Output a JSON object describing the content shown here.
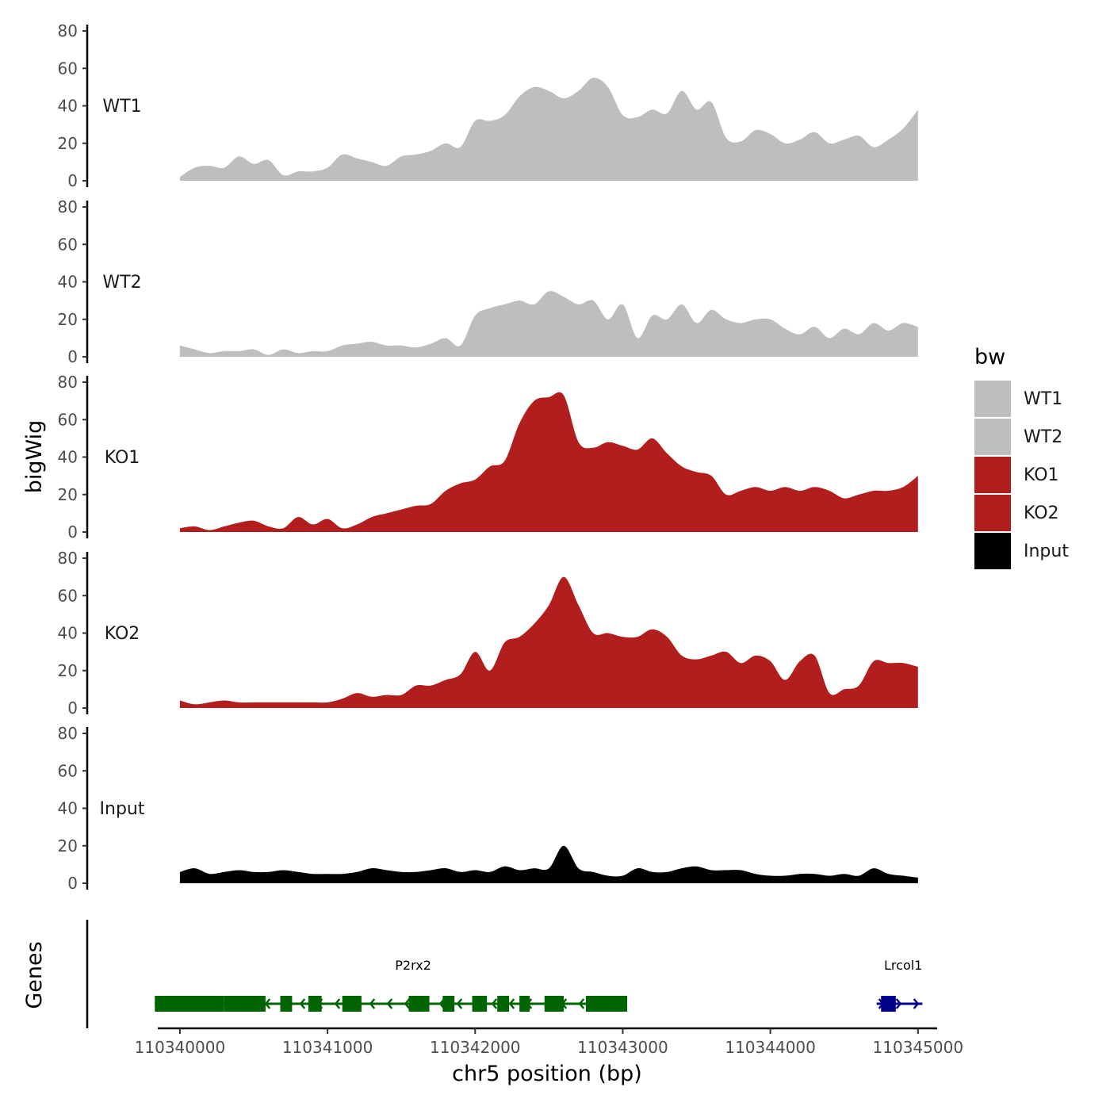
{
  "chart_data": {
    "type": "area",
    "ylabel": "bigWig",
    "xlabel": "chr5 position (bp)",
    "genes_panel_label": "Genes",
    "y_ticks": [
      0,
      20,
      40,
      60,
      80
    ],
    "ylim": [
      0,
      80
    ],
    "xlim": [
      110339850,
      110345130
    ],
    "x_ticks": [
      110340000,
      110341000,
      110342000,
      110343000,
      110344000,
      110345000
    ],
    "x_tick_labels": [
      "110340000",
      "110341000",
      "110342000",
      "110343000",
      "110344000",
      "110345000"
    ],
    "legend": {
      "title": "bw",
      "placement": "right",
      "entries": [
        {
          "name": "WT1",
          "color": "#bebebe"
        },
        {
          "name": "WT2",
          "color": "#bebebe"
        },
        {
          "name": "KO1",
          "color": "#b21e1e"
        },
        {
          "name": "KO2",
          "color": "#b21e1e"
        },
        {
          "name": "Input",
          "color": "#000000"
        }
      ]
    },
    "series": [
      {
        "name": "WT1",
        "color": "#bebebe",
        "x": [
          110340000,
          110340100,
          110340200,
          110340300,
          110340400,
          110340500,
          110340600,
          110340700,
          110340800,
          110340900,
          110341000,
          110341100,
          110341200,
          110341300,
          110341400,
          110341500,
          110341600,
          110341700,
          110341800,
          110341900,
          110342000,
          110342100,
          110342200,
          110342300,
          110342400,
          110342500,
          110342600,
          110342700,
          110342800,
          110342900,
          110343000,
          110343100,
          110343200,
          110343300,
          110343400,
          110343500,
          110343600,
          110343700,
          110343800,
          110343900,
          110344000,
          110344100,
          110344200,
          110344300,
          110344400,
          110344500,
          110344600,
          110344700,
          110344800,
          110344900,
          110345000
        ],
        "values": [
          2,
          7,
          8,
          7,
          13,
          9,
          11,
          3,
          5,
          5,
          7,
          14,
          12,
          10,
          8,
          13,
          14,
          16,
          20,
          18,
          32,
          32,
          35,
          45,
          50,
          48,
          44,
          48,
          55,
          50,
          35,
          34,
          38,
          36,
          48,
          38,
          42,
          23,
          21,
          27,
          25,
          20,
          22,
          26,
          20,
          22,
          24,
          18,
          22,
          28,
          38
        ]
      },
      {
        "name": "WT2",
        "color": "#bebebe",
        "x": [
          110340000,
          110340100,
          110340200,
          110340300,
          110340400,
          110340500,
          110340600,
          110340700,
          110340800,
          110340900,
          110341000,
          110341100,
          110341200,
          110341300,
          110341400,
          110341500,
          110341600,
          110341700,
          110341800,
          110341900,
          110342000,
          110342100,
          110342200,
          110342300,
          110342400,
          110342500,
          110342600,
          110342700,
          110342800,
          110342900,
          110343000,
          110343100,
          110343200,
          110343300,
          110343400,
          110343500,
          110343600,
          110343700,
          110343800,
          110343900,
          110344000,
          110344100,
          110344200,
          110344300,
          110344400,
          110344500,
          110344600,
          110344700,
          110344800,
          110344900,
          110345000
        ],
        "values": [
          6,
          4,
          2,
          3,
          3,
          4,
          1,
          4,
          2,
          3,
          3,
          6,
          7,
          8,
          6,
          6,
          5,
          7,
          10,
          6,
          22,
          26,
          28,
          30,
          28,
          35,
          32,
          28,
          30,
          20,
          28,
          10,
          22,
          20,
          28,
          18,
          25,
          20,
          18,
          20,
          20,
          15,
          12,
          16,
          10,
          15,
          12,
          18,
          14,
          18,
          16
        ]
      },
      {
        "name": "KO1",
        "color": "#b21e1e",
        "x": [
          110340000,
          110340100,
          110340200,
          110340300,
          110340400,
          110340500,
          110340600,
          110340700,
          110340800,
          110340900,
          110341000,
          110341100,
          110341200,
          110341300,
          110341400,
          110341500,
          110341600,
          110341700,
          110341800,
          110341900,
          110342000,
          110342100,
          110342200,
          110342300,
          110342400,
          110342500,
          110342600,
          110342700,
          110342800,
          110342900,
          110343000,
          110343100,
          110343200,
          110343300,
          110343400,
          110343500,
          110343600,
          110343700,
          110343800,
          110343900,
          110344000,
          110344100,
          110344200,
          110344300,
          110344400,
          110344500,
          110344600,
          110344700,
          110344800,
          110344900,
          110345000
        ],
        "values": [
          2,
          3,
          1,
          3,
          5,
          6,
          3,
          2,
          8,
          4,
          7,
          2,
          4,
          8,
          10,
          12,
          14,
          15,
          22,
          26,
          28,
          35,
          38,
          58,
          70,
          72,
          73,
          48,
          45,
          48,
          46,
          44,
          50,
          42,
          35,
          32,
          30,
          20,
          22,
          24,
          22,
          24,
          22,
          24,
          22,
          18,
          20,
          22,
          22,
          24,
          30
        ]
      },
      {
        "name": "KO2",
        "color": "#b21e1e",
        "x": [
          110340000,
          110340100,
          110340200,
          110340300,
          110340400,
          110340500,
          110340600,
          110340700,
          110340800,
          110340900,
          110341000,
          110341100,
          110341200,
          110341300,
          110341400,
          110341500,
          110341600,
          110341700,
          110341800,
          110341900,
          110342000,
          110342100,
          110342200,
          110342300,
          110342400,
          110342500,
          110342600,
          110342700,
          110342800,
          110342900,
          110343000,
          110343100,
          110343200,
          110343300,
          110343400,
          110343500,
          110343600,
          110343700,
          110343800,
          110343900,
          110344000,
          110344100,
          110344200,
          110344300,
          110344400,
          110344500,
          110344600,
          110344700,
          110344800,
          110344900,
          110345000
        ],
        "values": [
          4,
          2,
          3,
          4,
          3,
          3,
          3,
          3,
          3,
          3,
          3,
          5,
          8,
          6,
          7,
          7,
          12,
          12,
          15,
          18,
          30,
          20,
          35,
          38,
          45,
          55,
          70,
          55,
          40,
          40,
          38,
          38,
          42,
          38,
          28,
          26,
          28,
          30,
          24,
          28,
          25,
          15,
          25,
          28,
          8,
          10,
          12,
          25,
          24,
          24,
          22
        ]
      },
      {
        "name": "Input",
        "color": "#000000",
        "x": [
          110340000,
          110340100,
          110340200,
          110340300,
          110340400,
          110340500,
          110340600,
          110340700,
          110340800,
          110340900,
          110341000,
          110341100,
          110341200,
          110341300,
          110341400,
          110341500,
          110341600,
          110341700,
          110341800,
          110341900,
          110342000,
          110342100,
          110342200,
          110342300,
          110342400,
          110342500,
          110342600,
          110342700,
          110342800,
          110342900,
          110343000,
          110343100,
          110343200,
          110343300,
          110343400,
          110343500,
          110343600,
          110343700,
          110343800,
          110343900,
          110344000,
          110344100,
          110344200,
          110344300,
          110344400,
          110344500,
          110344600,
          110344700,
          110344800,
          110344900,
          110345000
        ],
        "values": [
          6,
          8,
          5,
          6,
          7,
          6,
          6,
          7,
          6,
          5,
          5,
          5,
          6,
          8,
          7,
          6,
          6,
          7,
          8,
          6,
          7,
          6,
          9,
          7,
          8,
          8,
          20,
          8,
          6,
          4,
          4,
          8,
          6,
          6,
          8,
          9,
          7,
          7,
          7,
          5,
          4,
          4,
          5,
          5,
          4,
          5,
          4,
          8,
          5,
          4,
          3
        ]
      }
    ],
    "genes": [
      {
        "name": "P2rx2",
        "color": "#006400",
        "strand": "-",
        "start": 110339830,
        "end": 110343030,
        "label_x": 110341580,
        "exons": [
          [
            110339830,
            110340300
          ],
          [
            110340300,
            110340580
          ],
          [
            110340680,
            110340760
          ],
          [
            110340870,
            110340960
          ],
          [
            110341100,
            110341230
          ],
          [
            110341550,
            110341690
          ],
          [
            110341780,
            110341860
          ],
          [
            110341980,
            110342080
          ],
          [
            110342150,
            110342230
          ],
          [
            110342300,
            110342370
          ],
          [
            110342470,
            110342600
          ],
          [
            110342750,
            110343030
          ]
        ]
      },
      {
        "name": "Lrcol1",
        "color": "#00008b",
        "strand": "+",
        "start": 110344720,
        "end": 110345030,
        "label_x": 110344900,
        "exons": [
          [
            110344750,
            110344850
          ]
        ]
      }
    ]
  }
}
